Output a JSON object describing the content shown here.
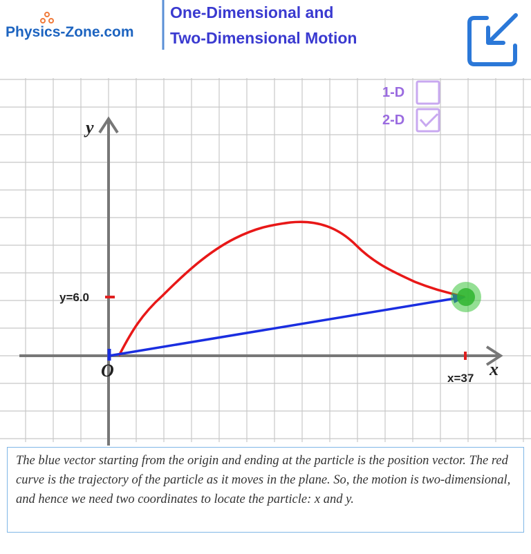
{
  "header": {
    "logo": "Physics-Zone.com",
    "title_lines": [
      "One-Dimensional and",
      "Two-Dimensional Motion"
    ]
  },
  "options": [
    {
      "label": "1-D",
      "checked": false
    },
    {
      "label": "2-D",
      "checked": true
    }
  ],
  "graph": {
    "y_axis_label": "y",
    "x_axis_label": "x",
    "origin_label": "O",
    "y_marker": "y=6.0",
    "x_marker": "x=37"
  },
  "caption": "The blue vector starting from the origin and ending at the particle is the position vector. The red curve is the trajectory of the particle as it moves in the plane. So, the motion is two-dimensional, and hence we need two coordinates to locate the particle: x and y."
}
